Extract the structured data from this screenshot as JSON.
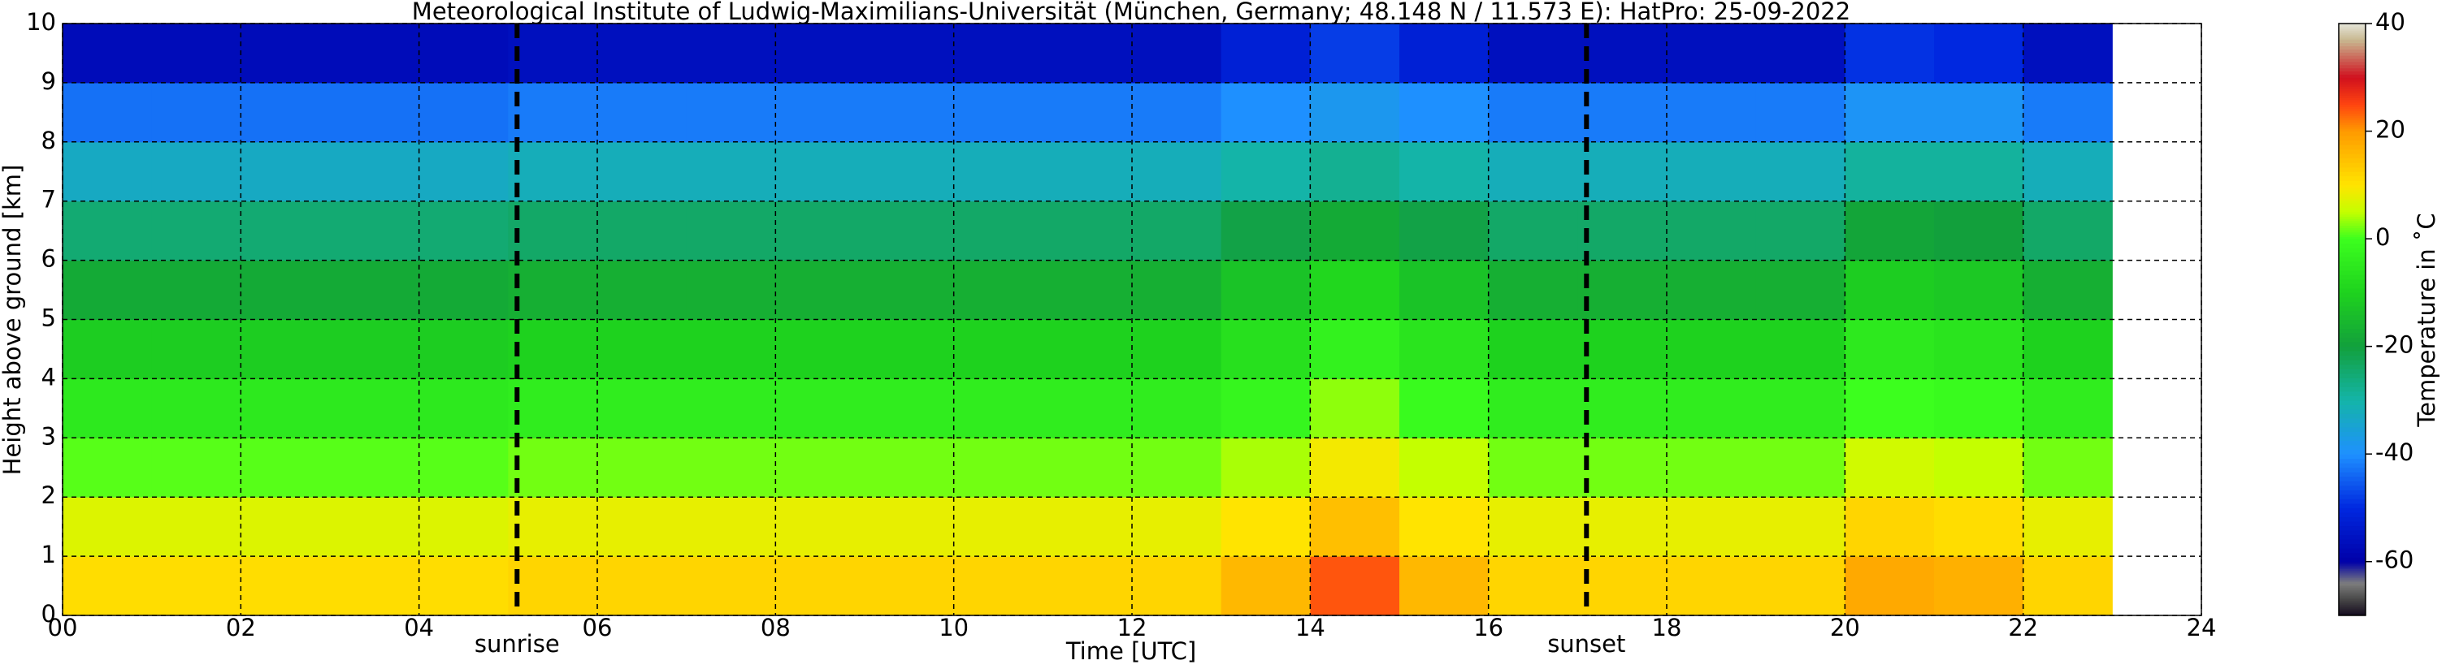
{
  "chart_data": {
    "type": "heatmap",
    "title": "Meteorological Institute of Ludwig-Maximilians-Universität (München, Germany; 48.148 N / 11.573 E):    HatPro: 25-09-2022",
    "x_label": "Time [UTC]",
    "y_label": "Height above ground [km]",
    "xlim": [
      0,
      24
    ],
    "ylim": [
      0,
      10
    ],
    "xticks": [
      {
        "value": 0,
        "label": "00"
      },
      {
        "value": 2,
        "label": "02"
      },
      {
        "value": 4,
        "label": "04"
      },
      {
        "value": 6,
        "label": "06"
      },
      {
        "value": 8,
        "label": "08"
      },
      {
        "value": 10,
        "label": "10"
      },
      {
        "value": 12,
        "label": "12"
      },
      {
        "value": 14,
        "label": "14"
      },
      {
        "value": 16,
        "label": "16"
      },
      {
        "value": 18,
        "label": "18"
      },
      {
        "value": 20,
        "label": "20"
      },
      {
        "value": 22,
        "label": "22"
      },
      24
    ],
    "yticks": [
      0,
      1,
      2,
      3,
      4,
      5,
      6,
      7,
      8,
      9,
      10
    ],
    "grid": true,
    "x": [
      0,
      1,
      2,
      3,
      4,
      5,
      6,
      7,
      8,
      9,
      10,
      11,
      12,
      13,
      14,
      15,
      16,
      17,
      18,
      19,
      20,
      21,
      22,
      23
    ],
    "y": [
      0,
      1,
      2,
      3,
      4,
      5,
      6,
      7,
      8,
      9,
      10
    ],
    "values": [
      [
        11,
        11,
        11,
        11,
        11,
        12,
        12,
        12,
        12,
        12,
        12,
        12,
        12,
        16,
        24,
        16,
        12,
        12,
        12,
        12,
        18,
        17,
        12
      ],
      [
        7,
        7,
        7,
        7,
        7,
        8,
        8,
        8,
        8,
        8,
        8,
        8,
        8,
        10,
        15,
        10,
        8,
        8,
        8,
        8,
        12,
        11,
        8
      ],
      [
        1,
        1,
        1,
        1,
        1,
        2,
        2,
        2,
        2,
        2,
        2,
        2,
        2,
        4,
        9,
        5,
        2,
        2,
        2,
        2,
        6,
        5,
        2
      ],
      [
        -5,
        -5,
        -5,
        -5,
        -5,
        -4,
        -4,
        -4,
        -4,
        -4,
        -4,
        -4,
        -4,
        -2,
        3,
        -1,
        -4,
        -4,
        -4,
        -4,
        0,
        -1,
        -4
      ],
      [
        -11,
        -11,
        -11,
        -11,
        -11,
        -10,
        -10,
        -10,
        -10,
        -10,
        -10,
        -10,
        -10,
        -7,
        -3,
        -6,
        -10,
        -10,
        -10,
        -10,
        -5,
        -6,
        -10
      ],
      [
        -18,
        -18,
        -18,
        -18,
        -18,
        -17,
        -17,
        -17,
        -17,
        -17,
        -17,
        -17,
        -17,
        -13,
        -9,
        -13,
        -17,
        -17,
        -17,
        -17,
        -11,
        -12,
        -17
      ],
      [
        -25,
        -25,
        -25,
        -25,
        -25,
        -24,
        -24,
        -24,
        -24,
        -24,
        -24,
        -24,
        -24,
        -21,
        -18,
        -21,
        -24,
        -24,
        -24,
        -24,
        -19,
        -20,
        -24
      ],
      [
        -33,
        -33,
        -33,
        -33,
        -33,
        -32,
        -32,
        -32,
        -32,
        -32,
        -32,
        -32,
        -32,
        -30,
        -28,
        -30,
        -32,
        -32,
        -32,
        -32,
        -29,
        -29,
        -32
      ],
      [
        -43,
        -43,
        -43,
        -43,
        -43,
        -42,
        -42,
        -42,
        -42,
        -42,
        -42,
        -42,
        -42,
        -40,
        -38,
        -40,
        -42,
        -42,
        -42,
        -42,
        -39,
        -39,
        -42
      ],
      [
        -57,
        -57,
        -57,
        -57,
        -57,
        -56,
        -56,
        -56,
        -56,
        -56,
        -56,
        -56,
        -56,
        -52,
        -48,
        -52,
        -56,
        -56,
        -56,
        -56,
        -49,
        -50,
        -56
      ]
    ],
    "annotations": [
      {
        "x": 5.1,
        "label": "sunrise"
      },
      {
        "x": 17.1,
        "label": "sunset"
      }
    ],
    "colorbar": {
      "label": "Temperature in ˚C",
      "lim": [
        -70,
        40
      ],
      "ticks": [
        -60,
        -40,
        -20,
        0,
        20,
        40
      ],
      "colors": [
        {
          "value": -70,
          "color": "#140a1e"
        },
        {
          "value": -67,
          "color": "#474747"
        },
        {
          "value": -64,
          "color": "#7d7d7d"
        },
        {
          "value": -60,
          "color": "#0000a8"
        },
        {
          "value": -50,
          "color": "#0028e0"
        },
        {
          "value": -40,
          "color": "#1e90ff"
        },
        {
          "value": -30,
          "color": "#14b4a8"
        },
        {
          "value": -20,
          "color": "#12a03c"
        },
        {
          "value": -10,
          "color": "#1ed21e"
        },
        {
          "value": 0,
          "color": "#3cff1e"
        },
        {
          "value": 5,
          "color": "#c4ff00"
        },
        {
          "value": 10,
          "color": "#ffe400"
        },
        {
          "value": 20,
          "color": "#ff9a00"
        },
        {
          "value": 25,
          "color": "#ff4410"
        },
        {
          "value": 30,
          "color": "#d0101e"
        },
        {
          "value": 37,
          "color": "#c8b890"
        },
        {
          "value": 40,
          "color": "#e4e4d8"
        }
      ]
    }
  }
}
